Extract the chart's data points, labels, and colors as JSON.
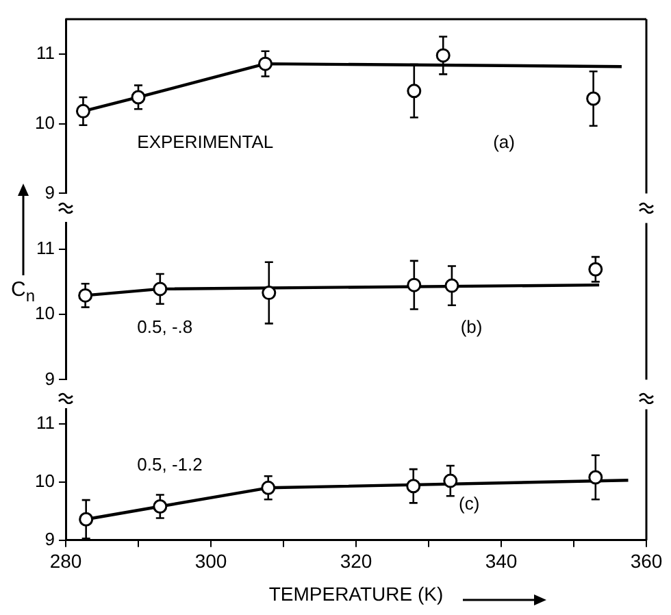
{
  "chart_data": [
    {
      "type": "scatter",
      "annotations": [
        "EXPERIMENTAL",
        "(a)"
      ],
      "xlim": [
        280,
        360
      ],
      "ylim": [
        9,
        11.5
      ],
      "yticks": [
        9,
        10,
        11
      ],
      "tick_labels": "y",
      "series": [
        {
          "marker": "circle",
          "color": "#000000",
          "x": [
            282.4,
            290,
            307.5,
            328,
            332,
            352.7
          ],
          "values": [
            10.18,
            10.38,
            10.86,
            10.47,
            10.98,
            10.36
          ],
          "errors": [
            0.2,
            0.17,
            0.18,
            0.38,
            0.27,
            0.39
          ]
        },
        {
          "type": "line",
          "marker": "none",
          "color": "#000000",
          "x": [
            282.4,
            290,
            307.5,
            356.6
          ],
          "values": [
            10.18,
            10.38,
            10.86,
            10.82
          ]
        }
      ]
    },
    {
      "type": "scatter",
      "ylabel": "C$_{n}$",
      "annotations": [
        "0.5, -.8",
        "(b)"
      ],
      "xlim": [
        280,
        360
      ],
      "ylim": [
        9,
        11.4
      ],
      "yticks": [
        9,
        10,
        11
      ],
      "tick_labels": "y",
      "series": [
        {
          "marker": "circle",
          "color": "#000000",
          "x": [
            282.7,
            293,
            308,
            328,
            333.2,
            353
          ],
          "values": [
            10.29,
            10.39,
            10.33,
            10.45,
            10.44,
            10.69
          ],
          "errors": [
            0.18,
            0.23,
            0.47,
            0.37,
            0.3,
            0.19
          ]
        },
        {
          "type": "line",
          "marker": "none",
          "color": "#000000",
          "x": [
            282.7,
            293,
            353.5
          ],
          "values": [
            10.29,
            10.39,
            10.45
          ]
        }
      ]
    },
    {
      "type": "scatter",
      "xlabel": "TEMPERATURE (K)",
      "annotations": [
        "0.5, -1.2",
        "(c)"
      ],
      "xlim": [
        280,
        360
      ],
      "xticks": [
        280,
        {
          "value": 290,
          "label": null
        },
        300,
        {
          "value": 310,
          "label": null
        },
        320,
        {
          "value": 330,
          "label": null
        },
        340,
        {
          "value": 350,
          "label": null
        },
        360
      ],
      "ylim": [
        9,
        11.25
      ],
      "yticks": [
        9,
        10,
        11
      ],
      "series": [
        {
          "marker": "circle",
          "color": "#000000",
          "x": [
            282.8,
            293,
            307.9,
            327.9,
            333,
            353
          ],
          "values": [
            9.36,
            9.58,
            9.9,
            9.93,
            10.02,
            10.08
          ],
          "errors": [
            0.33,
            0.2,
            0.2,
            0.29,
            0.26,
            0.38
          ]
        },
        {
          "type": "line",
          "marker": "none",
          "color": "#000000",
          "x": [
            282.8,
            293,
            307.9,
            357.5
          ],
          "values": [
            9.36,
            9.58,
            9.9,
            10.03
          ]
        }
      ]
    }
  ]
}
